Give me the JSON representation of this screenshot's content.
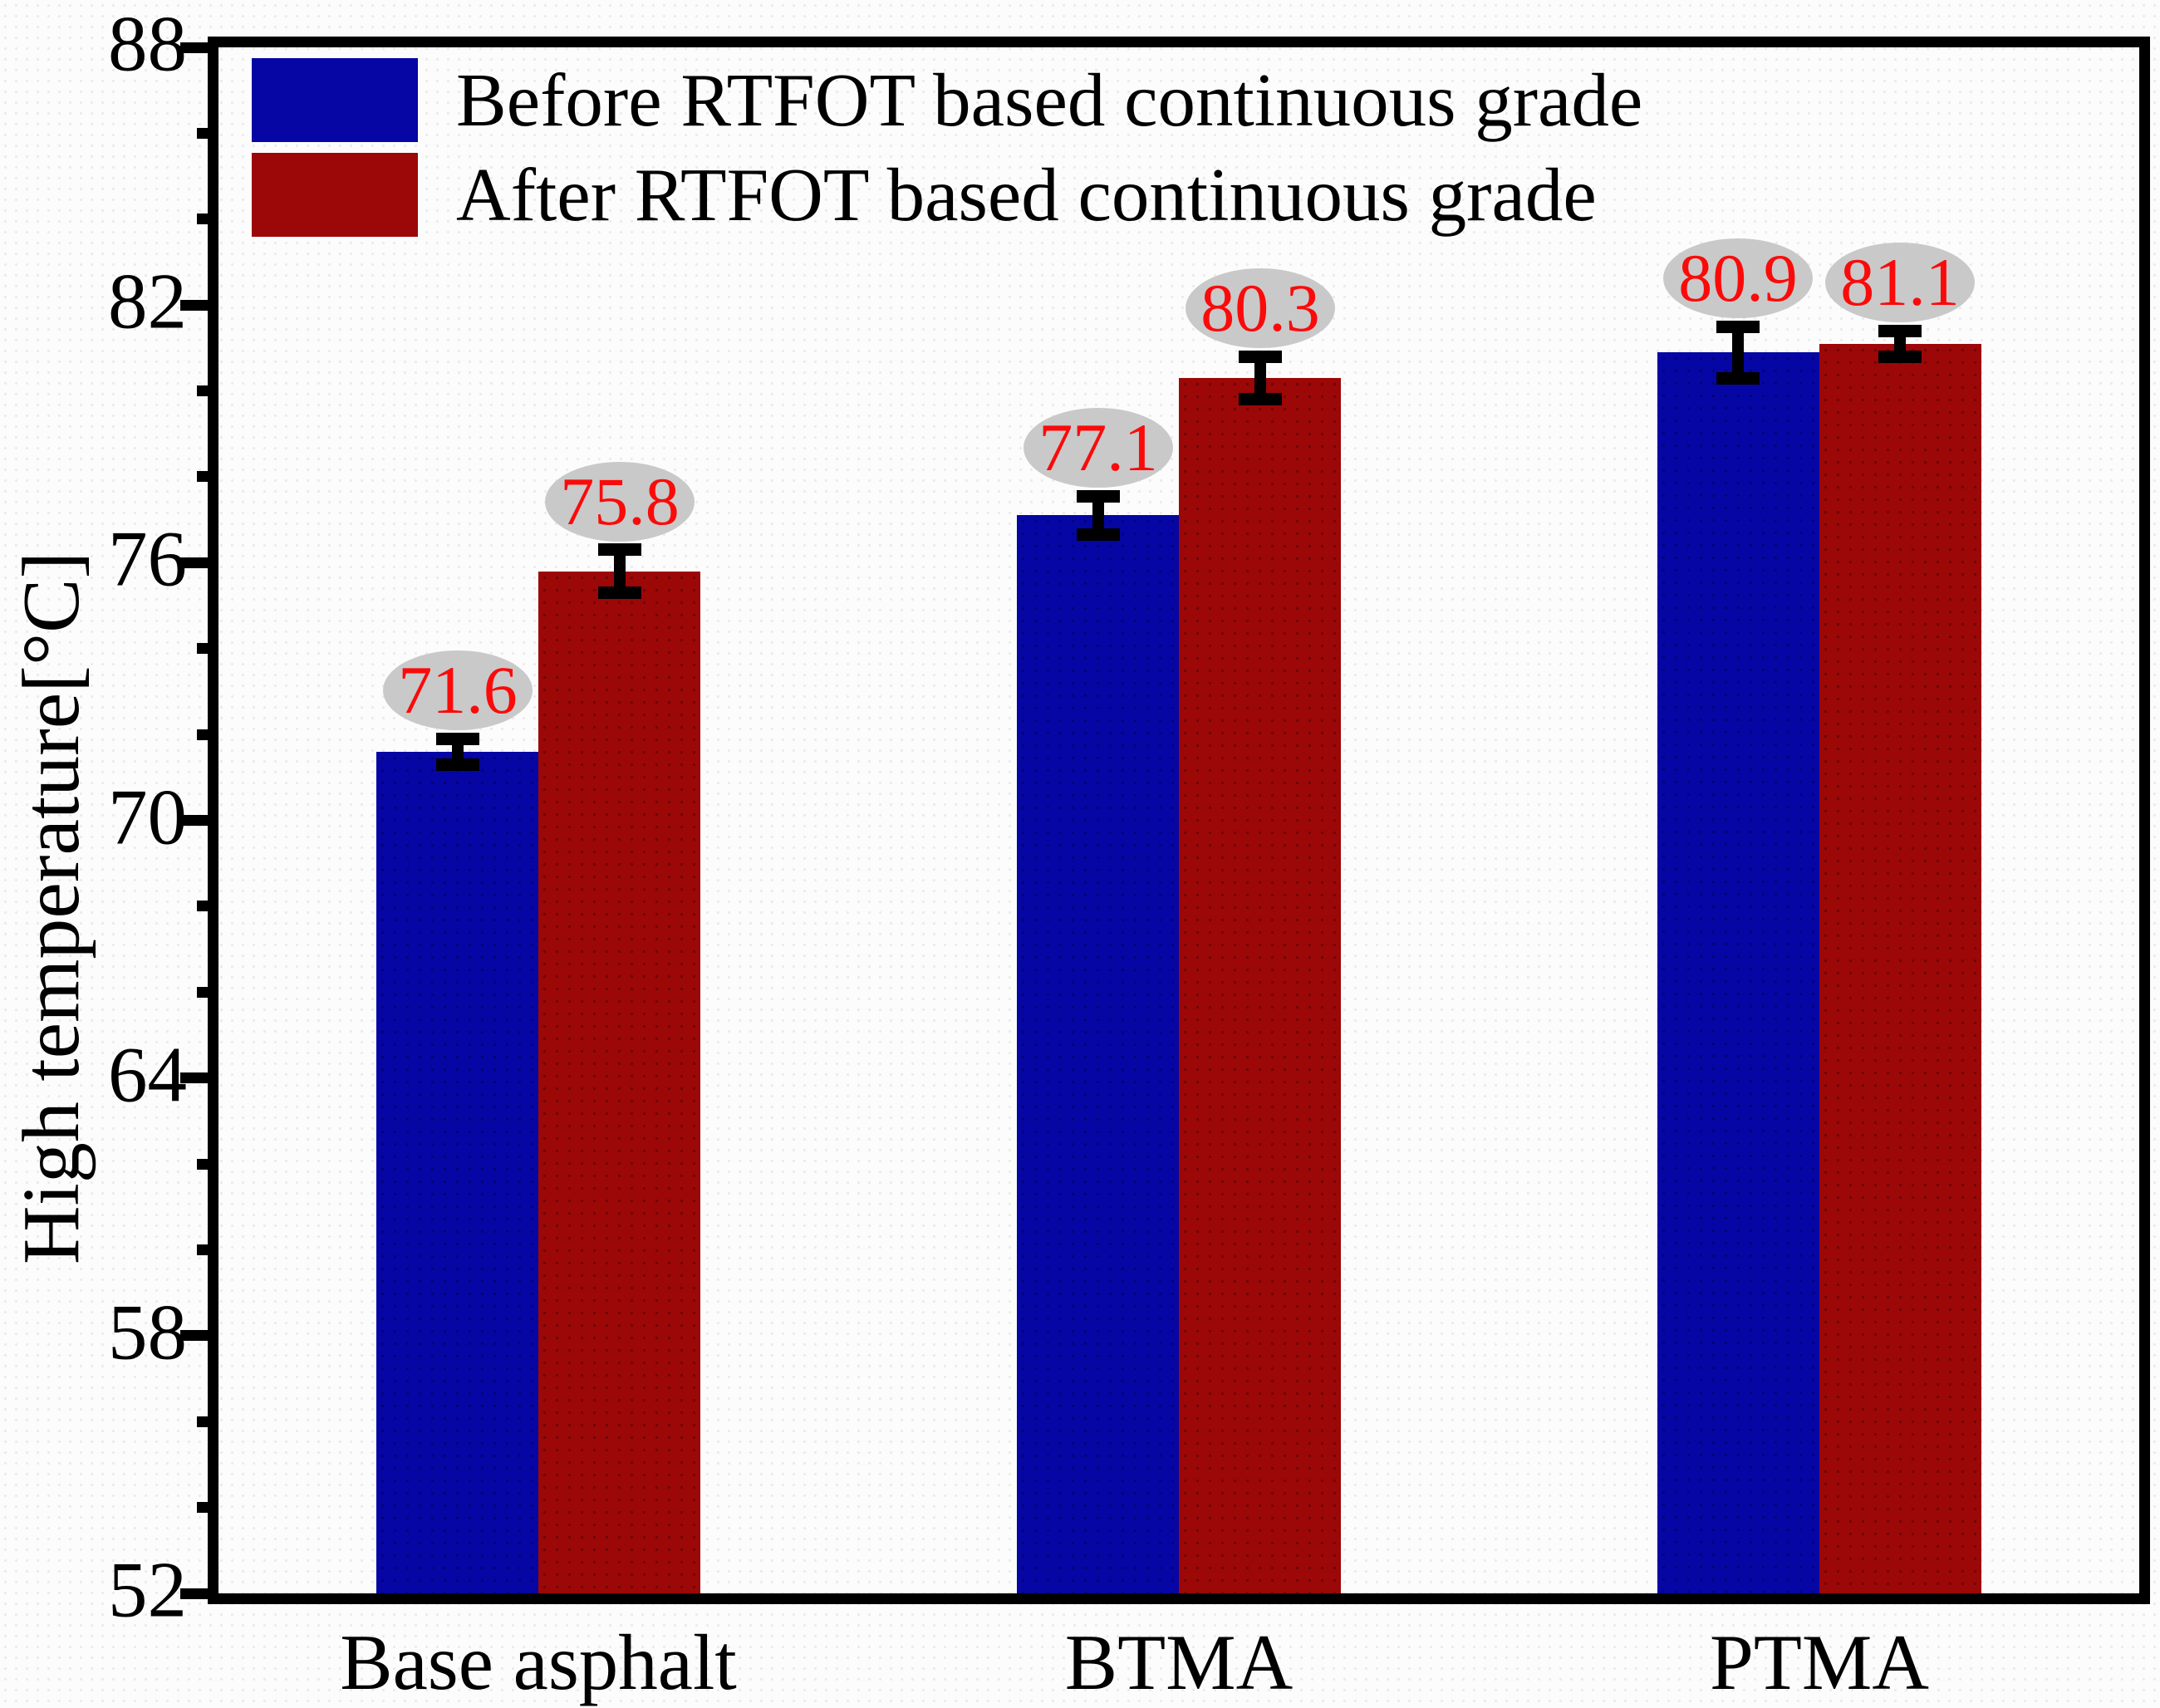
{
  "figure": {
    "background_color": "#fcfcfc",
    "frame_color": "#000000",
    "error_bar_color": "#000000"
  },
  "chart_data": {
    "type": "bar",
    "title": "",
    "xlabel": "",
    "ylabel": "High temperature[°C]",
    "ylim": [
      52,
      88
    ],
    "y_major_ticks": [
      88,
      82,
      76,
      70,
      64,
      58,
      52
    ],
    "y_minor_tick_step": 2,
    "grid": false,
    "legend_position": "top-left-inside",
    "categories": [
      "Base asphalt",
      "BTMA",
      "PTMA"
    ],
    "series": [
      {
        "name": "Before RTFOT based continuous grade",
        "color": "#0606a4",
        "values": [
          71.6,
          77.1,
          80.9
        ],
        "value_labels": [
          "71.6",
          "77.1",
          "80.9"
        ],
        "error_bars": [
          0.3,
          0.45,
          0.6
        ]
      },
      {
        "name": "After RTFOT based continuous grade",
        "color": "#9c0707",
        "values": [
          75.8,
          80.3,
          81.1
        ],
        "value_labels": [
          "75.8",
          "80.3",
          "81.1"
        ],
        "error_bars": [
          0.5,
          0.5,
          0.3
        ]
      }
    ],
    "value_label_style": {
      "text_color": "#fb0a0a",
      "bubble_fill": "#c9c9c9"
    }
  }
}
